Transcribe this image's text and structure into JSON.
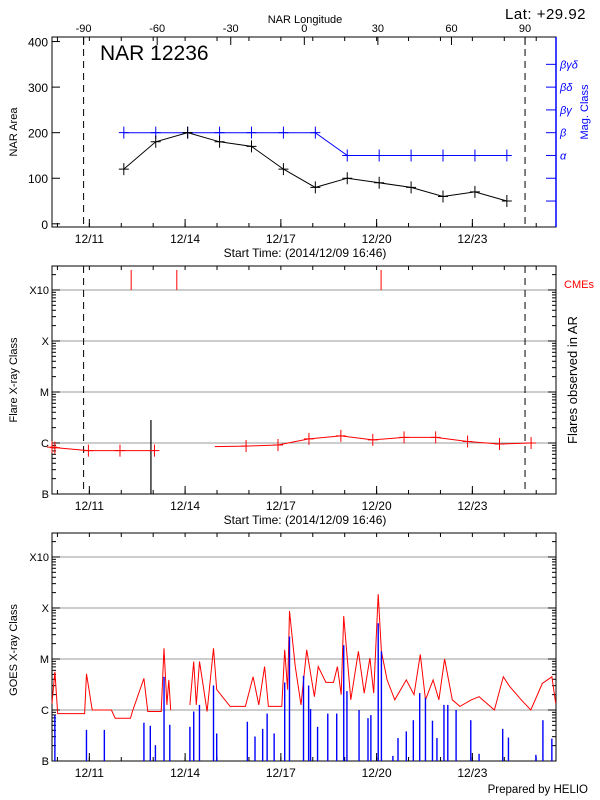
{
  "header": {
    "lat_label": "Lat: +29.92",
    "prepared_by": "Prepared by HELIO"
  },
  "chart_data": [
    {
      "type": "line",
      "title": "NAR 12236",
      "xlabel": "Start Time: (2014/12/09 16:46)",
      "ylabel": "NAR Area",
      "top_xlabel": "NAR Longitude",
      "right_ylabel": "Mag. Class",
      "x_unit": "day of December 2014",
      "xlim": [
        9.83,
        25.62
      ],
      "ylim": [
        -7,
        410
      ],
      "x_ticks": [
        {
          "x": 11,
          "label": "12/11"
        },
        {
          "x": 14,
          "label": "12/14"
        },
        {
          "x": 17,
          "label": "12/17"
        },
        {
          "x": 20,
          "label": "12/20"
        },
        {
          "x": 23,
          "label": "12/23"
        }
      ],
      "y_ticks": [
        0,
        100,
        200,
        300,
        400
      ],
      "longitude_ticks": [
        -90,
        -60,
        -30,
        0,
        30,
        60,
        90
      ],
      "limb_lines_longitude": [
        -90,
        90
      ],
      "limb_lines_x": [
        10.82,
        24.65
      ],
      "mag_class_ticks": [
        {
          "area": 50,
          "label": ""
        },
        {
          "area": 100,
          "label": ""
        },
        {
          "area": 150,
          "label": "α"
        },
        {
          "area": 200,
          "label": "β"
        },
        {
          "area": 250,
          "label": "βγ"
        },
        {
          "area": 300,
          "label": "βδ"
        },
        {
          "area": 350,
          "label": "βγδ"
        }
      ],
      "series": [
        {
          "name": "NAR Area",
          "color": "#000000",
          "x": [
            12.08,
            13.08,
            14.08,
            15.08,
            16.08,
            17.08,
            18.08,
            19.08,
            20.08,
            21.08,
            22.08,
            23.08,
            24.08
          ],
          "values": [
            120,
            180,
            200,
            180,
            170,
            120,
            80,
            100,
            90,
            80,
            60,
            70,
            50
          ]
        },
        {
          "name": "Mag. Class",
          "color": "#0000ff",
          "x": [
            12.08,
            13.08,
            14.08,
            15.08,
            16.08,
            17.08,
            18.08,
            19.08,
            20.08,
            21.08,
            22.08,
            23.08,
            24.08
          ],
          "values": [
            "β",
            "β",
            "β",
            "β",
            "β",
            "β",
            "β",
            "α",
            "α",
            "α",
            "α",
            "α",
            "α"
          ]
        }
      ],
      "grid": false
    },
    {
      "type": "line",
      "xlabel": "Start Time: (2014/12/09 16:46)",
      "ylabel": "Flare X-ray Class",
      "right_ylabel": "Flares observed in AR",
      "cme_label": "CMEs",
      "x_unit": "day of December 2014",
      "y_unit": "log10 flux (W/m^2)",
      "xlim": [
        9.83,
        25.62
      ],
      "ylim": [
        -7,
        -2.53
      ],
      "x_ticks": [
        {
          "x": 11,
          "label": "12/11"
        },
        {
          "x": 14,
          "label": "12/14"
        },
        {
          "x": 17,
          "label": "12/17"
        },
        {
          "x": 20,
          "label": "12/20"
        },
        {
          "x": 23,
          "label": "12/23"
        }
      ],
      "y_ticks": [
        {
          "y": -7,
          "label": "B"
        },
        {
          "y": -6,
          "label": "C"
        },
        {
          "y": -5,
          "label": "M"
        },
        {
          "y": -4,
          "label": "X"
        },
        {
          "y": -3,
          "label": "X10"
        }
      ],
      "grid_levels": [
        -6,
        -5,
        -4,
        -3
      ],
      "limb_lines_x": [
        10.82,
        24.65
      ],
      "series": [
        {
          "name": "",
          "color": "#ff0000",
          "segments": [
            {
              "x": [
                9.83,
                9.92,
                10.97,
                11.96,
                13.04
              ],
              "values": [
                -6.08,
                -6.09,
                -6.15,
                -6.15,
                -6.15
              ]
            },
            {
              "x": [
                14.93,
                15.91,
                16.91,
                17.88,
                18.88,
                19.88,
                20.86,
                21.85,
                22.85,
                23.85,
                24.84
              ],
              "values": [
                -6.07,
                -6.06,
                -6.04,
                -5.92,
                -5.86,
                -5.94,
                -5.89,
                -5.89,
                -5.97,
                -6.02,
                -6.0
              ]
            }
          ]
        }
      ],
      "flare_events": [
        {
          "x": 12.93,
          "value": -5.55,
          "color": "#000000"
        }
      ],
      "cme_times": [
        12.31,
        13.74,
        20.14
      ],
      "cme_color": "#ff0000"
    },
    {
      "type": "line",
      "ylabel": "GOES X-ray Class",
      "x_unit": "day of December 2014",
      "y_unit": "log10 flux (W/m^2)",
      "xlim": [
        9.83,
        25.62
      ],
      "ylim": [
        -7,
        -2.53
      ],
      "x_ticks": [
        {
          "x": 11,
          "label": "12/11"
        },
        {
          "x": 14,
          "label": "12/14"
        },
        {
          "x": 17,
          "label": "12/17"
        },
        {
          "x": 20,
          "label": "12/20"
        },
        {
          "x": 23,
          "label": "12/23"
        }
      ],
      "y_ticks": [
        {
          "y": -7,
          "label": "B"
        },
        {
          "y": -6,
          "label": "C"
        },
        {
          "y": -5,
          "label": "M"
        },
        {
          "y": -4,
          "label": "X"
        },
        {
          "y": -3,
          "label": "X10"
        }
      ],
      "grid_levels": [
        -6,
        -5,
        -4,
        -3
      ],
      "series": [
        {
          "name": "",
          "color": "#ff0000",
          "segments": [
            {
              "x": [
                9.83,
                9.92,
                10.01,
                10.85,
                10.91,
                11.09,
                11.69,
                11.81,
                12.29,
                12.35,
                12.71,
                12.83,
                13.25,
                13.34,
                13.43,
                13.49,
                13.55
              ],
              "values": [
                -5.87,
                -5.25,
                -6.07,
                -6.07,
                -5.29,
                -6.0,
                -6.0,
                -6.16,
                -6.16,
                -6.03,
                -5.38,
                -6.03,
                -6.03,
                -4.79,
                -5.9,
                -5.41,
                -6.0
              ]
            },
            {
              "x": [
                14.15,
                14.27,
                14.35,
                14.45,
                14.69,
                14.89,
                14.99,
                15.41,
                15.89,
                16.13,
                16.31,
                16.49,
                16.61,
                17.03,
                17.12,
                17.21,
                17.27,
                17.45,
                17.63,
                17.81,
                18.05,
                18.17,
                18.41,
                18.65,
                18.77,
                18.89,
                18.97,
                19.19,
                19.43,
                19.61,
                19.79,
                19.91,
                20.05,
                20.15,
                20.33,
                20.57,
                20.93,
                21.17,
                21.37,
                21.53,
                21.77,
                21.95,
                22.13,
                22.37,
                22.61,
                22.97,
                23.21,
                23.69,
                23.97,
                24.17,
                24.53,
                24.83,
                25.19,
                25.49,
                25.61
              ],
              "values": [
                -5.9,
                -5.05,
                -5.9,
                -5.05,
                -6.03,
                -4.79,
                -5.6,
                -5.93,
                -5.93,
                -5.35,
                -5.9,
                -5.15,
                -5.93,
                -5.93,
                -4.82,
                -5.6,
                -4.06,
                -5.14,
                -5.9,
                -4.82,
                -5.74,
                -5.15,
                -5.46,
                -5.46,
                -5.15,
                -5.7,
                -4.16,
                -5.8,
                -4.85,
                -5.67,
                -4.98,
                -5.67,
                -3.73,
                -4.85,
                -5.41,
                -5.8,
                -5.41,
                -5.7,
                -4.91,
                -5.8,
                -5.41,
                -5.8,
                -5.0,
                -5.8,
                -5.93,
                -5.8,
                -5.74,
                -6.0,
                -5.35,
                -5.54,
                -5.8,
                -6.0,
                -5.48,
                -5.35,
                -5.87
              ]
            }
          ]
        },
        {
          "name": "",
          "color": "#0000ff",
          "style": "spikes",
          "x": [
            9.92,
            10.91,
            11.47,
            12.71,
            12.91,
            13.07,
            13.34,
            13.52,
            14.15,
            14.27,
            14.45,
            14.89,
            14.99,
            15.95,
            16.19,
            16.43,
            16.57,
            16.79,
            17.12,
            17.27,
            17.71,
            17.87,
            17.93,
            18.15,
            18.47,
            18.75,
            18.97,
            19.07,
            19.45,
            19.73,
            19.82,
            20.05,
            20.15,
            20.51,
            20.67,
            20.93,
            21.15,
            21.35,
            21.53,
            21.75,
            21.89,
            22.11,
            22.23,
            22.49,
            22.95,
            23.21,
            23.95,
            24.13,
            24.99,
            25.21,
            25.49
          ],
          "values": [
            -6.1,
            -6.39,
            -6.39,
            -6.25,
            -6.31,
            -6.69,
            -5.35,
            -6.29,
            -6.33,
            -6.03,
            -5.9,
            -5.52,
            -6.46,
            -6.23,
            -6.52,
            -6.37,
            -6.07,
            -6.46,
            -5.46,
            -4.56,
            -5.33,
            -5.52,
            -5.98,
            -6.33,
            -6.07,
            -6.07,
            -4.73,
            -5.63,
            -6.0,
            -6.16,
            -6.1,
            -4.3,
            -4.85,
            -6.9,
            -6.55,
            -6.42,
            -6.2,
            -5.67,
            -5.76,
            -6.21,
            -6.55,
            -5.9,
            -5.9,
            -6.0,
            -6.2,
            -6.86,
            -6.37,
            -6.54,
            -6.88,
            -6.2,
            -6.56
          ]
        }
      ]
    }
  ]
}
